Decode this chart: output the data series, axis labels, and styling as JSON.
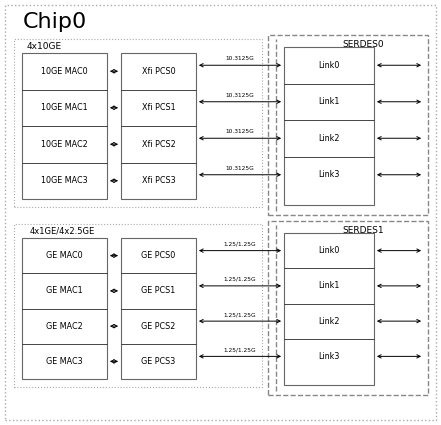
{
  "title": "Chip0",
  "bg_color": "#ffffff",
  "section1_label": "4x10GE",
  "section2_label": "4x1GE/4x2.5GE",
  "serdes0_label": "SERDES0",
  "serdes1_label": "SERDES1",
  "mac_labels_top": [
    "10GE MAC0",
    "10GE MAC1",
    "10GE MAC2",
    "10GE MAC3"
  ],
  "pcs_labels_top": [
    "Xfi PCS0",
    "Xfi PCS1",
    "Xfi PCS2",
    "Xfi PCS3"
  ],
  "link_labels_top": [
    "Link0",
    "Link1",
    "Link2",
    "Link3"
  ],
  "mac_labels_bot": [
    "GE MAC0",
    "GE MAC1",
    "GE MAC2",
    "GE MAC3"
  ],
  "pcs_labels_bot": [
    "GE PCS0",
    "GE PCS1",
    "GE PCS2",
    "GE PCS3"
  ],
  "link_labels_bot": [
    "Link0",
    "Link1",
    "Link2",
    "Link3"
  ],
  "speed_top": "10.3125G",
  "speed_bot": "1.25/1.25G",
  "line_color": "#000000",
  "dashed_color": "#888888",
  "dot_border_color": "#aaaaaa"
}
